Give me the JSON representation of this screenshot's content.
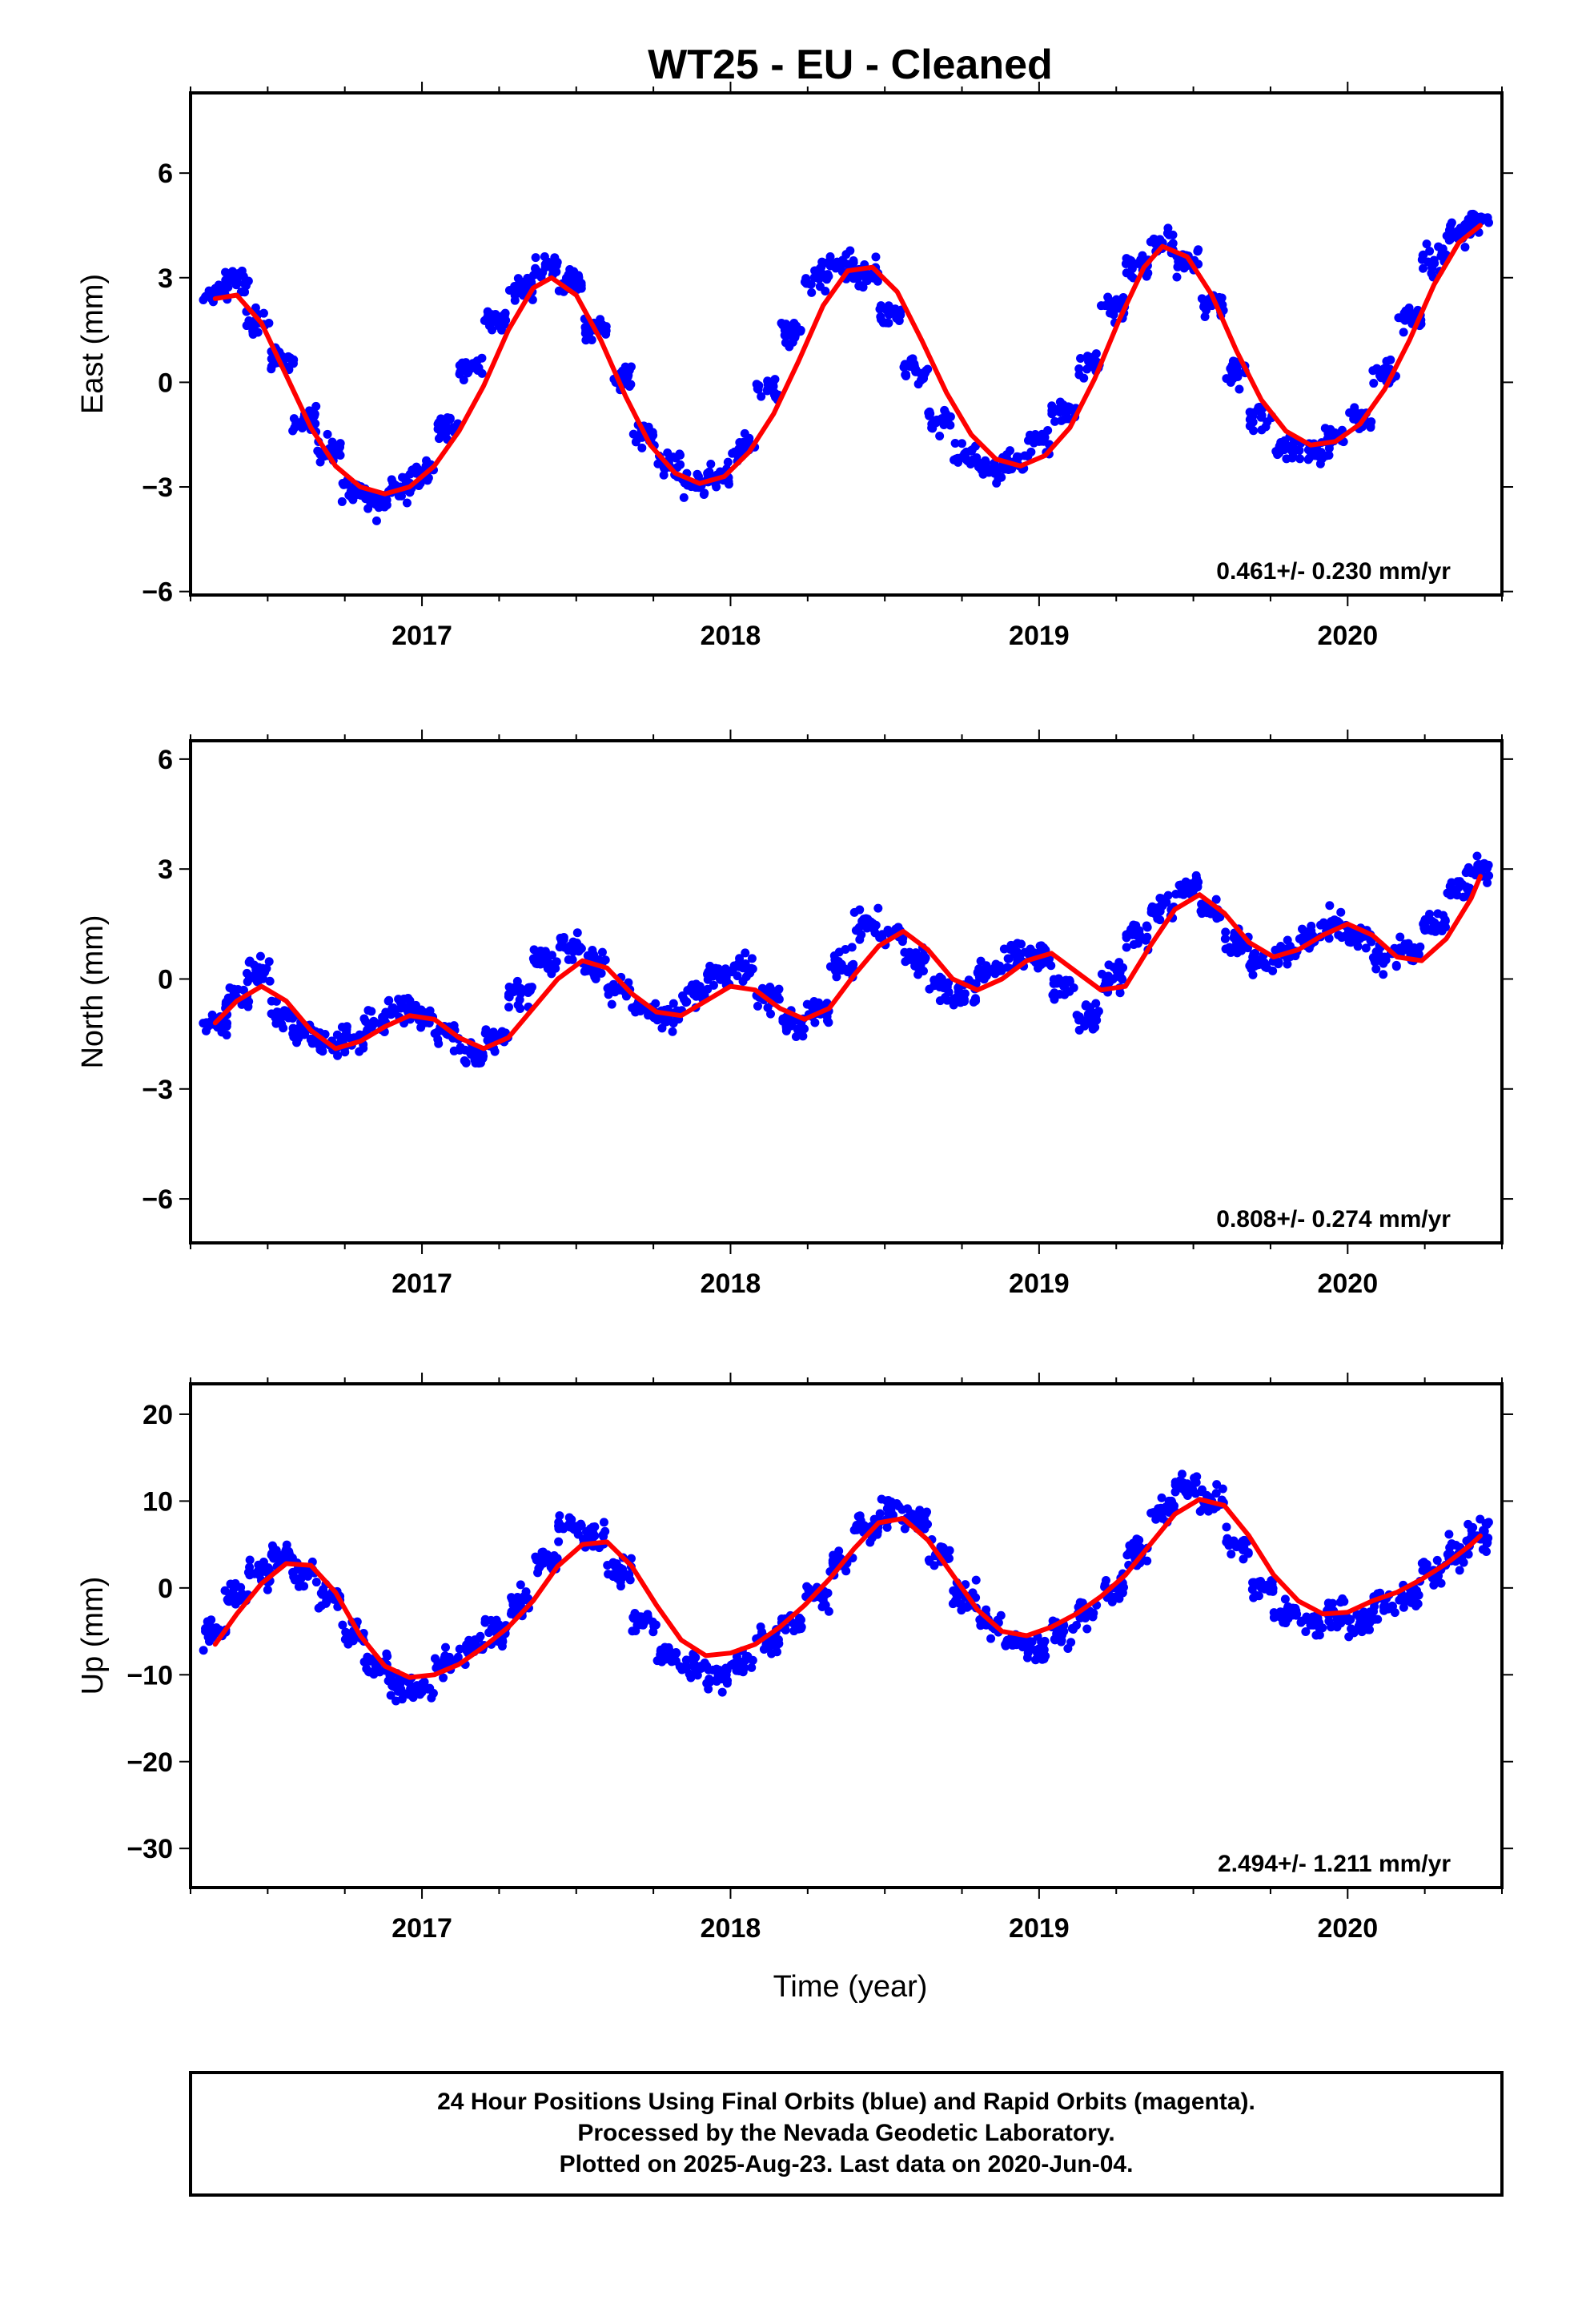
{
  "title": "WT25  - EU - Cleaned",
  "xlabel": "Time (year)",
  "colors": {
    "final_orbits": "#0000ff",
    "fit": "#ff0000",
    "frame": "#000000"
  },
  "footer": {
    "line1": "24 Hour Positions Using Final Orbits (blue) and Rapid Orbits (magenta).",
    "line2": "Processed by the Nevada Geodetic Laboratory.",
    "line3": "Plotted on 2025-Aug-23. Last data on 2020-Jun-04."
  },
  "chart_data": [
    {
      "type": "scatter",
      "ylabel": "East (mm)",
      "rate": "0.461+/- 0.230 mm/yr",
      "xlim": [
        2016.25,
        2020.5
      ],
      "ylim": [
        -6.1,
        8.3
      ],
      "xticks": [
        2017,
        2018,
        2019,
        2020
      ],
      "yticks": [
        -6,
        -3,
        0,
        3,
        6
      ],
      "yticklabels": [
        "−6",
        "−3",
        "0",
        "3",
        "6"
      ],
      "grid": false,
      "series": [
        {
          "kind": "points",
          "color": "#0000ff",
          "x": [
            2016.33,
            2016.4,
            2016.47,
            2016.55,
            2016.62,
            2016.7,
            2016.78,
            2016.85,
            2016.93,
            2017.0,
            2017.08,
            2017.16,
            2017.24,
            2017.32,
            2017.4,
            2017.48,
            2017.56,
            2017.64,
            2017.72,
            2017.8,
            2017.88,
            2017.96,
            2018.04,
            2018.12,
            2018.2,
            2018.28,
            2018.36,
            2018.44,
            2018.52,
            2018.6,
            2018.68,
            2018.76,
            2018.84,
            2018.92,
            2019.0,
            2019.08,
            2019.16,
            2019.24,
            2019.32,
            2019.4,
            2019.48,
            2019.56,
            2019.64,
            2019.72,
            2019.8,
            2019.88,
            2019.96,
            2020.04,
            2020.12,
            2020.2,
            2020.28,
            2020.36,
            2020.42
          ],
          "y": [
            2.5,
            2.9,
            1.7,
            0.6,
            -1.1,
            -1.9,
            -3.1,
            -3.4,
            -3.0,
            -2.6,
            -1.3,
            0.4,
            1.8,
            2.7,
            3.3,
            2.8,
            1.5,
            0.1,
            -1.5,
            -2.3,
            -2.9,
            -2.7,
            -1.9,
            -0.2,
            1.5,
            3.0,
            3.4,
            3.1,
            2.0,
            0.3,
            -1.1,
            -2.1,
            -2.5,
            -2.3,
            -1.7,
            -0.8,
            0.6,
            2.1,
            3.4,
            4.0,
            3.5,
            2.2,
            0.4,
            -1.0,
            -1.8,
            -2.0,
            -1.6,
            -1.1,
            0.2,
            1.8,
            3.5,
            4.3,
            4.6
          ]
        },
        {
          "kind": "fit",
          "color": "#ff0000",
          "x": [
            2016.33,
            2016.4,
            2016.48,
            2016.56,
            2016.64,
            2016.72,
            2016.8,
            2016.88,
            2016.96,
            2017.04,
            2017.12,
            2017.2,
            2017.28,
            2017.36,
            2017.42,
            2017.5,
            2017.58,
            2017.66,
            2017.74,
            2017.82,
            2017.9,
            2017.98,
            2018.06,
            2018.14,
            2018.22,
            2018.3,
            2018.38,
            2018.46,
            2018.54,
            2018.62,
            2018.7,
            2018.78,
            2018.86,
            2018.94,
            2019.02,
            2019.1,
            2019.18,
            2019.26,
            2019.34,
            2019.4,
            2019.48,
            2019.56,
            2019.64,
            2019.72,
            2019.8,
            2019.88,
            2019.96,
            2020.04,
            2020.12,
            2020.2,
            2020.28,
            2020.36,
            2020.43
          ],
          "y": [
            2.4,
            2.5,
            1.7,
            0.2,
            -1.3,
            -2.4,
            -3.0,
            -3.2,
            -3.0,
            -2.4,
            -1.4,
            -0.1,
            1.5,
            2.7,
            3.0,
            2.5,
            1.2,
            -0.4,
            -1.8,
            -2.6,
            -2.9,
            -2.7,
            -2.0,
            -0.9,
            0.6,
            2.2,
            3.2,
            3.3,
            2.6,
            1.2,
            -0.3,
            -1.5,
            -2.2,
            -2.4,
            -2.1,
            -1.3,
            0.1,
            1.8,
            3.3,
            3.9,
            3.6,
            2.5,
            0.9,
            -0.5,
            -1.4,
            -1.8,
            -1.7,
            -1.2,
            -0.2,
            1.2,
            2.8,
            4.0,
            4.5
          ]
        }
      ]
    },
    {
      "type": "scatter",
      "ylabel": "North (mm)",
      "rate": "0.808+/- 0.274 mm/yr",
      "xlim": [
        2016.25,
        2020.5
      ],
      "ylim": [
        -7.2,
        6.5
      ],
      "xticks": [
        2017,
        2018,
        2019,
        2020
      ],
      "yticks": [
        -6,
        -3,
        0,
        3,
        6
      ],
      "yticklabels": [
        "−6",
        "−3",
        "0",
        "3",
        "6"
      ],
      "grid": false,
      "series": [
        {
          "kind": "points",
          "color": "#0000ff",
          "x": [
            2016.33,
            2016.4,
            2016.47,
            2016.55,
            2016.62,
            2016.7,
            2016.78,
            2016.85,
            2016.93,
            2017.0,
            2017.08,
            2017.16,
            2017.24,
            2017.32,
            2017.4,
            2017.48,
            2017.56,
            2017.64,
            2017.72,
            2017.8,
            2017.88,
            2017.96,
            2018.04,
            2018.12,
            2018.2,
            2018.28,
            2018.36,
            2018.44,
            2018.52,
            2018.6,
            2018.68,
            2018.76,
            2018.84,
            2018.92,
            2019.0,
            2019.08,
            2019.16,
            2019.24,
            2019.32,
            2019.4,
            2019.48,
            2019.56,
            2019.64,
            2019.72,
            2019.8,
            2019.88,
            2019.96,
            2020.04,
            2020.12,
            2020.2,
            2020.28,
            2020.36,
            2020.42
          ],
          "y": [
            -1.2,
            -0.5,
            0.2,
            -1.0,
            -1.5,
            -1.8,
            -1.6,
            -1.2,
            -0.8,
            -1.0,
            -1.5,
            -2.0,
            -1.6,
            -0.4,
            0.5,
            0.9,
            0.4,
            -0.3,
            -0.8,
            -1.0,
            -0.4,
            0.1,
            0.3,
            -0.5,
            -1.2,
            -0.8,
            0.4,
            1.5,
            1.2,
            0.5,
            -0.2,
            -0.4,
            0.2,
            0.7,
            0.6,
            -0.2,
            -1.0,
            0.0,
            1.2,
            2.0,
            2.5,
            1.9,
            1.0,
            0.4,
            0.7,
            1.2,
            1.5,
            1.1,
            0.6,
            0.8,
            1.5,
            2.5,
            3.0
          ]
        },
        {
          "kind": "fit",
          "color": "#ff0000",
          "x": [
            2016.33,
            2016.4,
            2016.48,
            2016.56,
            2016.64,
            2016.72,
            2016.8,
            2016.88,
            2016.96,
            2017.04,
            2017.12,
            2017.2,
            2017.28,
            2017.36,
            2017.44,
            2017.52,
            2017.6,
            2017.68,
            2017.76,
            2017.84,
            2017.92,
            2018.0,
            2018.08,
            2018.16,
            2018.24,
            2018.32,
            2018.4,
            2018.48,
            2018.56,
            2018.64,
            2018.72,
            2018.8,
            2018.88,
            2018.96,
            2019.04,
            2019.12,
            2019.2,
            2019.28,
            2019.36,
            2019.44,
            2019.52,
            2019.6,
            2019.68,
            2019.76,
            2019.84,
            2019.92,
            2020.0,
            2020.08,
            2020.16,
            2020.24,
            2020.32,
            2020.4,
            2020.43
          ],
          "y": [
            -1.2,
            -0.6,
            -0.2,
            -0.6,
            -1.4,
            -1.9,
            -1.7,
            -1.3,
            -1.0,
            -1.1,
            -1.6,
            -1.9,
            -1.6,
            -0.8,
            0.0,
            0.5,
            0.3,
            -0.4,
            -0.9,
            -1.0,
            -0.6,
            -0.2,
            -0.3,
            -0.8,
            -1.1,
            -0.8,
            0.1,
            0.9,
            1.3,
            0.8,
            0.0,
            -0.3,
            0.0,
            0.5,
            0.7,
            0.2,
            -0.3,
            -0.2,
            0.9,
            1.9,
            2.3,
            1.8,
            1.0,
            0.6,
            0.8,
            1.2,
            1.5,
            1.2,
            0.6,
            0.5,
            1.1,
            2.2,
            2.8
          ]
        }
      ]
    },
    {
      "type": "scatter",
      "ylabel": "Up (mm)",
      "rate": "2.494+/- 1.211 mm/yr",
      "xlim": [
        2016.25,
        2020.5
      ],
      "ylim": [
        -34.5,
        23.5
      ],
      "xticks": [
        2017,
        2018,
        2019,
        2020
      ],
      "yticks": [
        -30,
        -20,
        -10,
        0,
        10,
        20
      ],
      "yticklabels": [
        "−30",
        "−20",
        "−10",
        "0",
        "10",
        "20"
      ],
      "grid": false,
      "series": [
        {
          "kind": "points",
          "color": "#0000ff",
          "x": [
            2016.33,
            2016.4,
            2016.47,
            2016.55,
            2016.62,
            2016.7,
            2016.78,
            2016.85,
            2016.93,
            2017.0,
            2017.08,
            2017.16,
            2017.24,
            2017.32,
            2017.4,
            2017.48,
            2017.56,
            2017.64,
            2017.72,
            2017.8,
            2017.88,
            2017.96,
            2018.04,
            2018.12,
            2018.2,
            2018.28,
            2018.36,
            2018.44,
            2018.52,
            2018.6,
            2018.68,
            2018.76,
            2018.84,
            2018.92,
            2019.0,
            2019.08,
            2019.16,
            2019.24,
            2019.32,
            2019.4,
            2019.48,
            2019.56,
            2019.64,
            2019.72,
            2019.8,
            2019.88,
            2019.96,
            2020.04,
            2020.12,
            2020.2,
            2020.28,
            2020.36,
            2020.42
          ],
          "y": [
            -5.0,
            -1.0,
            2.0,
            3.5,
            2.0,
            -1.0,
            -5.0,
            -9.0,
            -11.0,
            -12.0,
            -9.0,
            -7.0,
            -5.0,
            -2.0,
            3.0,
            7.0,
            6.0,
            2.0,
            -4.0,
            -8.0,
            -9.0,
            -10.0,
            -9.0,
            -6.0,
            -4.0,
            -1.0,
            3.0,
            7.0,
            9.0,
            8.0,
            4.0,
            -1.0,
            -4.0,
            -6.0,
            -7.0,
            -5.0,
            -3.0,
            0.0,
            4.0,
            9.0,
            12.0,
            10.0,
            5.0,
            0.0,
            -3.0,
            -4.0,
            -3.0,
            -4.0,
            -2.0,
            -1.0,
            2.0,
            4.0,
            6.0
          ]
        },
        {
          "kind": "fit",
          "color": "#ff0000",
          "x": [
            2016.33,
            2016.4,
            2016.48,
            2016.56,
            2016.64,
            2016.72,
            2016.8,
            2016.88,
            2016.96,
            2017.04,
            2017.12,
            2017.2,
            2017.28,
            2017.36,
            2017.44,
            2017.52,
            2017.6,
            2017.68,
            2017.76,
            2017.84,
            2017.92,
            2018.0,
            2018.08,
            2018.16,
            2018.24,
            2018.32,
            2018.4,
            2018.48,
            2018.56,
            2018.64,
            2018.72,
            2018.8,
            2018.88,
            2018.96,
            2019.04,
            2019.12,
            2019.2,
            2019.28,
            2019.36,
            2019.44,
            2019.52,
            2019.6,
            2019.68,
            2019.76,
            2019.84,
            2019.92,
            2020.0,
            2020.08,
            2020.16,
            2020.24,
            2020.32,
            2020.4,
            2020.43
          ],
          "y": [
            -6.5,
            -3.0,
            0.5,
            2.8,
            2.6,
            -0.5,
            -5.5,
            -9.0,
            -10.3,
            -10.0,
            -8.8,
            -6.8,
            -4.5,
            -1.5,
            2.5,
            5.0,
            5.3,
            2.5,
            -2.0,
            -6.0,
            -7.8,
            -7.5,
            -6.5,
            -4.5,
            -2.0,
            1.0,
            4.5,
            7.5,
            8.0,
            5.5,
            1.5,
            -2.5,
            -5.0,
            -5.5,
            -4.5,
            -3.0,
            -1.0,
            1.5,
            5.0,
            8.5,
            10.2,
            9.5,
            6.0,
            1.5,
            -1.5,
            -3.0,
            -2.8,
            -1.5,
            -0.5,
            1.0,
            2.8,
            5.0,
            6.0
          ]
        }
      ]
    }
  ]
}
